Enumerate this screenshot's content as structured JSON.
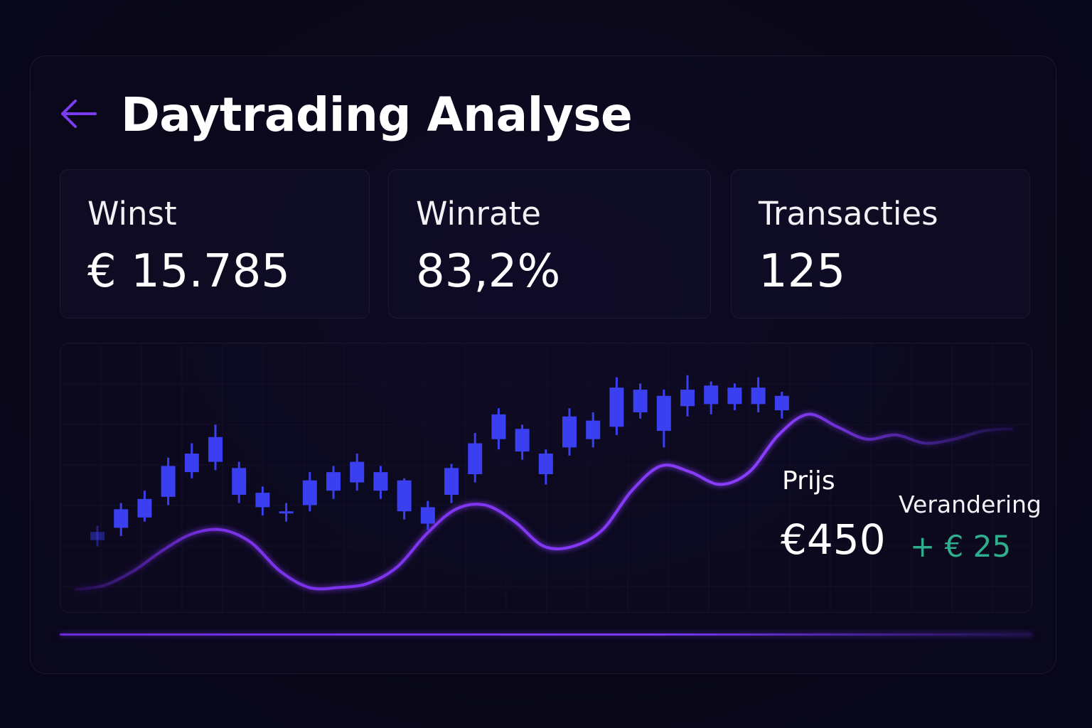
{
  "header": {
    "title": "Daytrading Analyse",
    "back_icon": "arrow-left-icon"
  },
  "stats": [
    {
      "label": "Winst",
      "value": "€ 15.785"
    },
    {
      "label": "Winrate",
      "value": "83,2%"
    },
    {
      "label": "Transacties",
      "value": "125"
    }
  ],
  "price_panel": {
    "price_label": "Prijs",
    "price_value": "€450",
    "change_label": "Verandering",
    "change_value": "+ € 25"
  },
  "colors": {
    "background": "#0a0818",
    "accent": "#7a3bff",
    "candle": "#3a3ff0",
    "line": "#8a3dff",
    "positive": "#2fae8e"
  },
  "chart_data": {
    "type": "candlestick",
    "title": "",
    "xlabel": "",
    "ylabel": "",
    "ylim": [
      0,
      100
    ],
    "grid": true,
    "candles": [
      {
        "open": 8,
        "close": 12,
        "high": 15,
        "low": 5
      },
      {
        "open": 14,
        "close": 23,
        "high": 26,
        "low": 10
      },
      {
        "open": 19,
        "close": 28,
        "high": 32,
        "low": 17
      },
      {
        "open": 29,
        "close": 44,
        "high": 48,
        "low": 25
      },
      {
        "open": 41,
        "close": 50,
        "high": 55,
        "low": 38
      },
      {
        "open": 46,
        "close": 58,
        "high": 64,
        "low": 42
      },
      {
        "open": 43,
        "close": 30,
        "high": 46,
        "low": 26
      },
      {
        "open": 31,
        "close": 24,
        "high": 34,
        "low": 20
      },
      {
        "open": 22,
        "close": 22,
        "high": 26,
        "low": 17
      },
      {
        "open": 25,
        "close": 37,
        "high": 41,
        "low": 22
      },
      {
        "open": 32,
        "close": 41,
        "high": 44,
        "low": 28
      },
      {
        "open": 36,
        "close": 46,
        "high": 50,
        "low": 32
      },
      {
        "open": 41,
        "close": 32,
        "high": 44,
        "low": 28
      },
      {
        "open": 37,
        "close": 22,
        "high": 38,
        "low": 18
      },
      {
        "open": 24,
        "close": 16,
        "high": 27,
        "low": 13
      },
      {
        "open": 30,
        "close": 43,
        "high": 45,
        "low": 26
      },
      {
        "open": 40,
        "close": 55,
        "high": 60,
        "low": 36
      },
      {
        "open": 57,
        "close": 69,
        "high": 72,
        "low": 52
      },
      {
        "open": 62,
        "close": 51,
        "high": 64,
        "low": 47
      },
      {
        "open": 50,
        "close": 40,
        "high": 52,
        "low": 35
      },
      {
        "open": 53,
        "close": 68,
        "high": 72,
        "low": 49
      },
      {
        "open": 57,
        "close": 66,
        "high": 70,
        "low": 53
      },
      {
        "open": 63,
        "close": 82,
        "high": 87,
        "low": 59
      },
      {
        "open": 81,
        "close": 70,
        "high": 84,
        "low": 67
      },
      {
        "open": 78,
        "close": 61,
        "high": 81,
        "low": 53
      },
      {
        "open": 73,
        "close": 81,
        "high": 88,
        "low": 68
      },
      {
        "open": 83,
        "close": 74,
        "high": 85,
        "low": 69
      },
      {
        "open": 74,
        "close": 82,
        "high": 84,
        "low": 71
      },
      {
        "open": 82,
        "close": 74,
        "high": 87,
        "low": 70
      },
      {
        "open": 71,
        "close": 78,
        "high": 80,
        "low": 67
      }
    ],
    "line_series": {
      "values": [
        3,
        5,
        12,
        22,
        30,
        32,
        26,
        12,
        4,
        4,
        6,
        14,
        30,
        42,
        44,
        36,
        24,
        24,
        32,
        51,
        63,
        60,
        54,
        60,
        78,
        88,
        82,
        76,
        78,
        74,
        76,
        80,
        81
      ]
    }
  }
}
